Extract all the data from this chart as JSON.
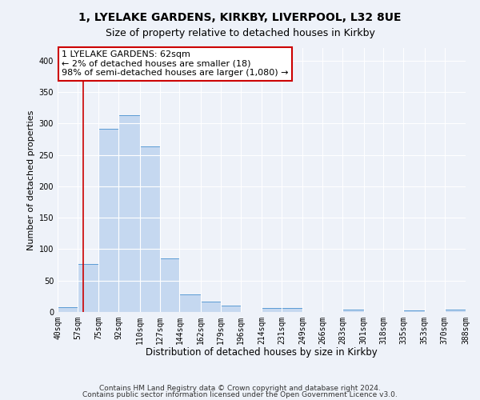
{
  "title": "1, LYELAKE GARDENS, KIRKBY, LIVERPOOL, L32 8UE",
  "subtitle": "Size of property relative to detached houses in Kirkby",
  "xlabel": "Distribution of detached houses by size in Kirkby",
  "ylabel": "Number of detached properties",
  "bin_edges": [
    40,
    57,
    75,
    92,
    110,
    127,
    144,
    162,
    179,
    196,
    214,
    231,
    249,
    266,
    283,
    301,
    318,
    335,
    353,
    370,
    388
  ],
  "bar_heights": [
    8,
    77,
    291,
    313,
    263,
    85,
    28,
    16,
    10,
    0,
    6,
    7,
    0,
    0,
    4,
    0,
    0,
    3,
    0,
    4
  ],
  "bar_color": "#c5d8f0",
  "bar_edge_color": "#5b9bd5",
  "property_line_x": 62,
  "property_line_color": "#cc0000",
  "annotation_line1": "1 LYELAKE GARDENS: 62sqm",
  "annotation_line2": "← 2% of detached houses are smaller (18)",
  "annotation_line3": "98% of semi-detached houses are larger (1,080) →",
  "annotation_box_color": "#ffffff",
  "annotation_box_edge_color": "#cc0000",
  "ylim": [
    0,
    420
  ],
  "yticks": [
    0,
    50,
    100,
    150,
    200,
    250,
    300,
    350,
    400
  ],
  "footnote1": "Contains HM Land Registry data © Crown copyright and database right 2024.",
  "footnote2": "Contains public sector information licensed under the Open Government Licence v3.0.",
  "background_color": "#eef2f9",
  "plot_background_color": "#eef2f9",
  "grid_color": "#ffffff",
  "title_fontsize": 10,
  "subtitle_fontsize": 9,
  "xlabel_fontsize": 8.5,
  "ylabel_fontsize": 8,
  "tick_fontsize": 7,
  "annotation_fontsize": 8,
  "footnote_fontsize": 6.5
}
